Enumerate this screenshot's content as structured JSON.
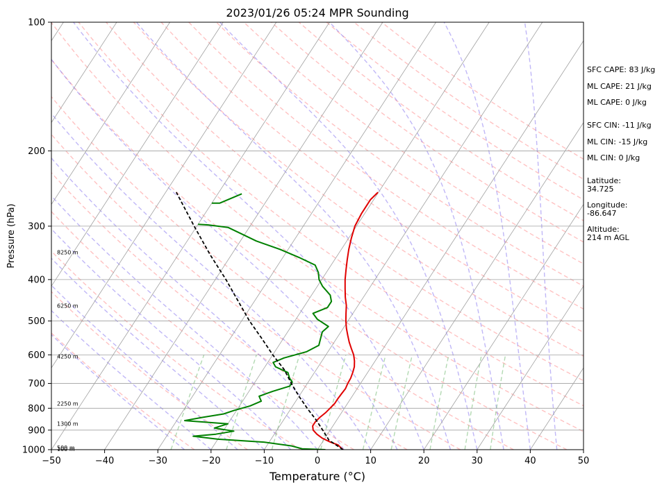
{
  "chart_data": {
    "type": "line",
    "title": "2023/01/26 05:24 MPR Sounding",
    "xlabel": "Temperature (°C)",
    "ylabel": "Pressure (hPa)",
    "xlim": [
      -50,
      50
    ],
    "ylim": [
      1000,
      100
    ],
    "y_scale": "log",
    "x_ticks": [
      "−50",
      "−40",
      "−30",
      "−20",
      "−10",
      "0",
      "10",
      "20",
      "30",
      "40",
      "50"
    ],
    "y_ticks": [
      100,
      200,
      300,
      400,
      500,
      600,
      700,
      800,
      900,
      1000
    ],
    "grid": "isobars",
    "series": [
      {
        "role": "temperature",
        "color": "#e00000",
        "points": [
          {
            "p": 1000,
            "t": 4.8
          },
          {
            "p": 990,
            "t": 4.2
          },
          {
            "p": 975,
            "t": 3.3
          },
          {
            "p": 960,
            "t": 1.5
          },
          {
            "p": 940,
            "t": -0.5
          },
          {
            "p": 920,
            "t": -2.0
          },
          {
            "p": 900,
            "t": -3.2
          },
          {
            "p": 880,
            "t": -3.8
          },
          {
            "p": 860,
            "t": -3.8
          },
          {
            "p": 840,
            "t": -3.5
          },
          {
            "p": 820,
            "t": -3.0
          },
          {
            "p": 800,
            "t": -2.7
          },
          {
            "p": 780,
            "t": -2.4
          },
          {
            "p": 760,
            "t": -2.4
          },
          {
            "p": 740,
            "t": -2.3
          },
          {
            "p": 720,
            "t": -2.2
          },
          {
            "p": 700,
            "t": -2.4
          },
          {
            "p": 680,
            "t": -2.5
          },
          {
            "p": 660,
            "t": -2.8
          },
          {
            "p": 640,
            "t": -3.2
          },
          {
            "p": 620,
            "t": -3.9
          },
          {
            "p": 600,
            "t": -4.8
          },
          {
            "p": 580,
            "t": -6.0
          },
          {
            "p": 560,
            "t": -7.2
          },
          {
            "p": 540,
            "t": -8.3
          },
          {
            "p": 520,
            "t": -9.4
          },
          {
            "p": 500,
            "t": -10.4
          },
          {
            "p": 480,
            "t": -11.3
          },
          {
            "p": 460,
            "t": -12.2
          },
          {
            "p": 440,
            "t": -13.4
          },
          {
            "p": 420,
            "t": -14.5
          },
          {
            "p": 400,
            "t": -15.6
          },
          {
            "p": 380,
            "t": -16.6
          },
          {
            "p": 360,
            "t": -17.6
          },
          {
            "p": 340,
            "t": -18.6
          },
          {
            "p": 320,
            "t": -19.5
          },
          {
            "p": 300,
            "t": -20.3
          },
          {
            "p": 280,
            "t": -20.6
          },
          {
            "p": 260,
            "t": -20.6
          },
          {
            "p": 250,
            "t": -20.1
          }
        ]
      },
      {
        "role": "dewpoint",
        "color": "#008000",
        "points": [
          {
            "p": 1000,
            "t": 1.5
          },
          {
            "p": 995,
            "t": -3.0
          },
          {
            "p": 980,
            "t": -5.3
          },
          {
            "p": 960,
            "t": -11.0
          },
          {
            "p": 945,
            "t": -20.0
          },
          {
            "p": 930,
            "t": -25.0
          },
          {
            "p": 920,
            "t": -21.0
          },
          {
            "p": 905,
            "t": -18.0
          },
          {
            "p": 890,
            "t": -22.0
          },
          {
            "p": 870,
            "t": -20.0
          },
          {
            "p": 855,
            "t": -28.5
          },
          {
            "p": 840,
            "t": -25.5
          },
          {
            "p": 825,
            "t": -22.0
          },
          {
            "p": 810,
            "t": -20.5
          },
          {
            "p": 790,
            "t": -18.0
          },
          {
            "p": 770,
            "t": -16.5
          },
          {
            "p": 750,
            "t": -17.5
          },
          {
            "p": 730,
            "t": -15.5
          },
          {
            "p": 710,
            "t": -13.0
          },
          {
            "p": 695,
            "t": -13.0
          },
          {
            "p": 680,
            "t": -14.0
          },
          {
            "p": 660,
            "t": -15.0
          },
          {
            "p": 640,
            "t": -18.0
          },
          {
            "p": 625,
            "t": -19.0
          },
          {
            "p": 610,
            "t": -17.5
          },
          {
            "p": 590,
            "t": -14.0
          },
          {
            "p": 570,
            "t": -12.5
          },
          {
            "p": 550,
            "t": -13.0
          },
          {
            "p": 530,
            "t": -13.5
          },
          {
            "p": 515,
            "t": -13.0
          },
          {
            "p": 495,
            "t": -16.0
          },
          {
            "p": 480,
            "t": -17.5
          },
          {
            "p": 465,
            "t": -15.5
          },
          {
            "p": 450,
            "t": -15.5
          },
          {
            "p": 435,
            "t": -16.5
          },
          {
            "p": 415,
            "t": -19.0
          },
          {
            "p": 400,
            "t": -20.5
          },
          {
            "p": 385,
            "t": -21.5
          },
          {
            "p": 370,
            "t": -23.0
          },
          {
            "p": 355,
            "t": -27.0
          },
          {
            "p": 340,
            "t": -31.5
          },
          {
            "p": 325,
            "t": -37.0
          },
          {
            "p": 310,
            "t": -41.5
          },
          {
            "p": 302,
            "t": -44.0
          },
          {
            "p": 298,
            "t": -48.0
          },
          {
            "p": 297,
            "t": -50.0
          }
        ]
      },
      {
        "role": "dewpoint-upper",
        "color": "#008000",
        "points": [
          {
            "p": 265,
            "t": -50.0
          },
          {
            "p": 265,
            "t": -48.5
          },
          {
            "p": 252,
            "t": -45.5
          }
        ]
      },
      {
        "role": "parcel",
        "color": "#000000",
        "points": [
          {
            "p": 1000,
            "t": 4.8
          },
          {
            "p": 950,
            "t": 1.0
          },
          {
            "p": 900,
            "t": -1.4
          },
          {
            "p": 850,
            "t": -4.0
          },
          {
            "p": 800,
            "t": -7.0
          },
          {
            "p": 750,
            "t": -10.0
          },
          {
            "p": 700,
            "t": -13.0
          },
          {
            "p": 650,
            "t": -16.0
          },
          {
            "p": 600,
            "t": -20.0
          },
          {
            "p": 550,
            "t": -24.0
          },
          {
            "p": 500,
            "t": -28.5
          },
          {
            "p": 450,
            "t": -33.0
          },
          {
            "p": 400,
            "t": -38.0
          },
          {
            "p": 350,
            "t": -44.0
          },
          {
            "p": 300,
            "t": -50.5
          },
          {
            "p": 250,
            "t": -58.0
          }
        ]
      }
    ],
    "height_labels": [
      "100 m",
      "500 m",
      "1300 m",
      "2250 m",
      "4250 m",
      "6250 m",
      "8250 m"
    ],
    "annotations": {
      "sfc_cape": "SFC CAPE: 83 J/kg",
      "ml_cape_1": "ML CAPE: 21 J/kg",
      "ml_cape_2": "ML CAPE: 0 J/kg",
      "sfc_cin": "SFC CIN: -11 J/kg",
      "ml_cin_1": "ML CIN: -15 J/kg",
      "ml_cin_2": "ML CIN: 0 J/kg",
      "latitude_label": "Latitude:",
      "latitude_value": "34.725",
      "longitude_label": "Longitude:",
      "longitude_value": "-86.647",
      "altitude_label": "Altitude:",
      "altitude_value": "214 m AGL"
    },
    "colors": {
      "isotherm": "#a0a0a0",
      "dry_adiabat": "#ff9999",
      "moist_adiabat": "#8c7cf0",
      "mixing_ratio": "#7fc07f",
      "isobar": "#a0a0a0"
    }
  }
}
